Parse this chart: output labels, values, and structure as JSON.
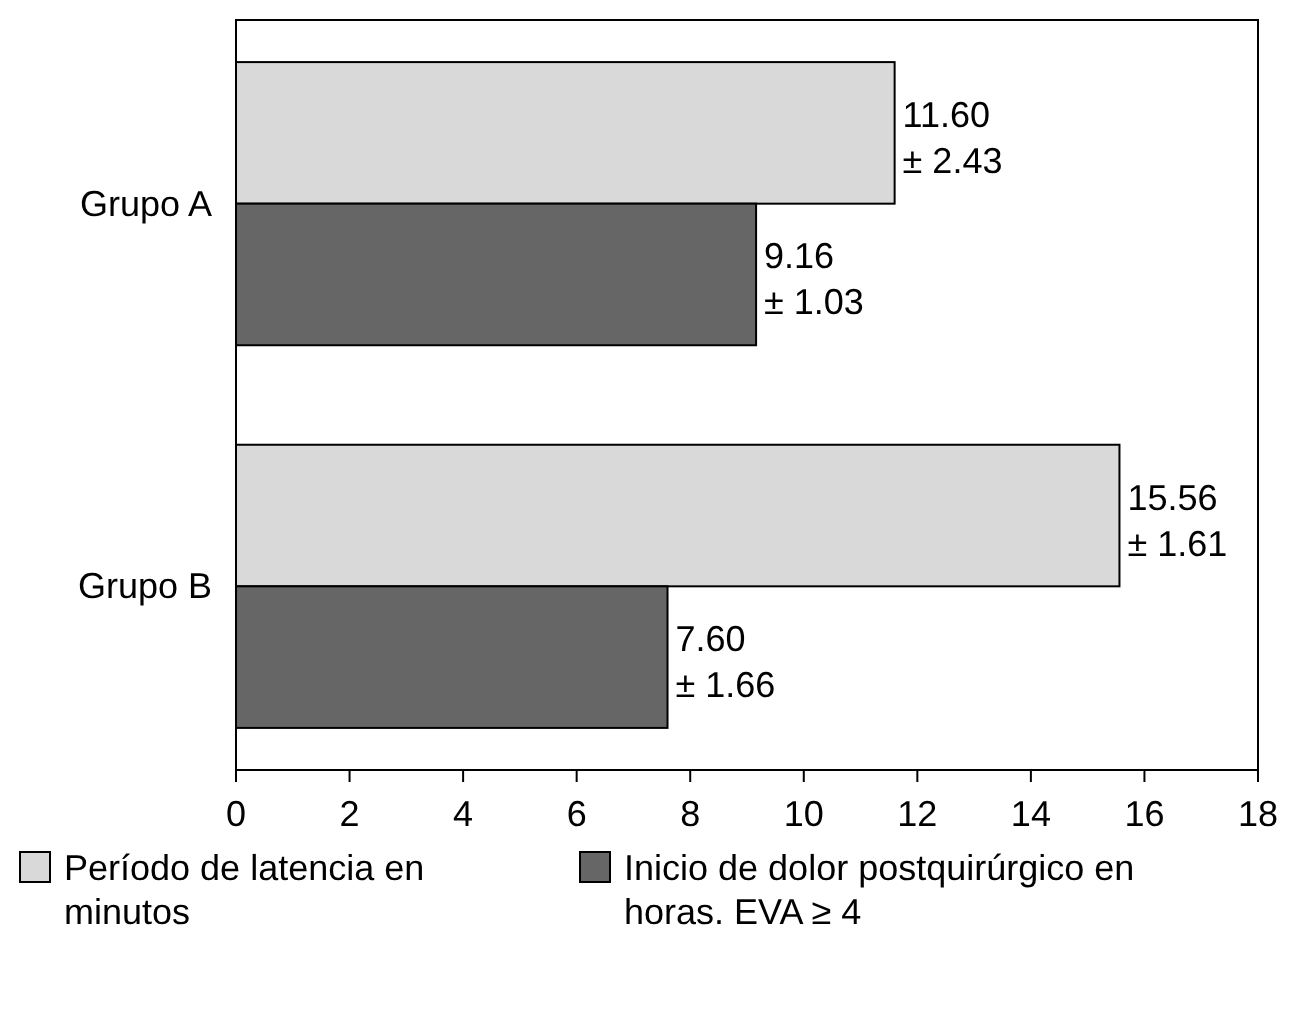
{
  "chart_data": {
    "type": "bar",
    "orientation": "horizontal",
    "categories": [
      "Grupo A",
      "Grupo B"
    ],
    "series": [
      {
        "name": "Período de latencia en minutos",
        "color": "#d9d9d9",
        "values": [
          11.6,
          15.56
        ],
        "value_labels": [
          "11.60 ± 2.43",
          "15.56 ± 1.61"
        ]
      },
      {
        "name": "Inicio de dolor postquirúrgico en horas. EVA ≥ 4",
        "color": "#666666",
        "values": [
          9.16,
          7.6
        ],
        "value_labels": [
          "9.16 ± 1.03",
          "7.60 ± 1.66"
        ]
      }
    ],
    "xlim": [
      0,
      18
    ],
    "xticks": [
      0,
      2,
      4,
      6,
      8,
      10,
      12,
      14,
      16,
      18
    ],
    "grid": false,
    "legend": "bottom"
  }
}
